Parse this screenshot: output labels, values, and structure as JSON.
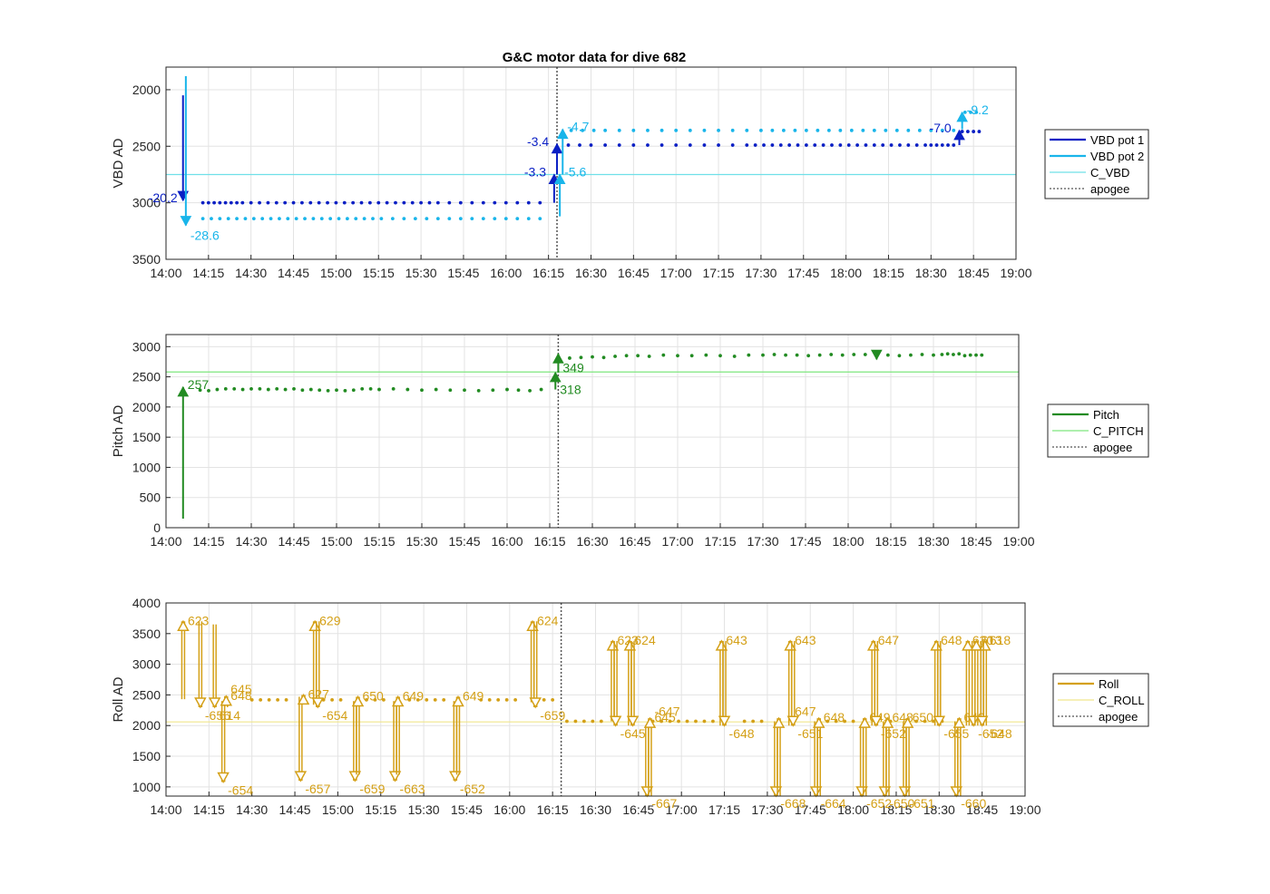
{
  "title": "G&C motor data for dive 682",
  "time_axis": {
    "start": "14:00",
    "end": "19:00",
    "ticks": [
      "14:00",
      "14:15",
      "14:30",
      "14:45",
      "15:00",
      "15:15",
      "15:30",
      "15:45",
      "16:00",
      "16:15",
      "16:30",
      "16:45",
      "17:00",
      "17:15",
      "17:30",
      "17:45",
      "18:00",
      "18:15",
      "18:30",
      "18:45",
      "19:00"
    ]
  },
  "colors": {
    "vbd1": "#0a1fc4",
    "vbd2": "#19b5ea",
    "c_vbd": "#6fe0e8",
    "pitch": "#228b22",
    "c_pitch": "#7ee67e",
    "roll": "#d4a017",
    "c_roll": "#f0e68c",
    "apogee": "#555555"
  },
  "chart_data": [
    {
      "type": "line",
      "ylabel": "VBD AD",
      "ylim": [
        3500,
        1800
      ],
      "yticks": [
        2000,
        2500,
        3000,
        3500
      ],
      "y_reversed": true,
      "grid": true,
      "legend_position": "right",
      "legend": [
        "VBD pot 1",
        "VBD pot 2",
        "C_VBD",
        "apogee"
      ],
      "apogee": "16:18",
      "reference": {
        "name": "C_VBD",
        "value": 2750
      },
      "series": [
        {
          "name": "VBD pot 1",
          "segments": [
            {
              "x": [
                "14:13",
                "14:15",
                "14:17",
                "14:19",
                "14:21",
                "14:23",
                "14:25",
                "14:27",
                "14:30",
                "14:33",
                "14:36",
                "14:39",
                "14:42",
                "14:45",
                "14:48",
                "14:51",
                "14:54",
                "14:57",
                "15:00",
                "15:03",
                "15:06",
                "15:09",
                "15:12",
                "15:15",
                "15:18",
                "15:21",
                "15:24",
                "15:27",
                "15:30",
                "15:33",
                "15:36",
                "15:40",
                "15:44",
                "15:48",
                "15:52",
                "15:56",
                "16:00",
                "16:04",
                "16:08",
                "16:12"
              ],
              "y": 3000
            },
            {
              "x": [
                "16:22",
                "16:26",
                "16:30",
                "16:35",
                "16:40",
                "16:45",
                "16:50",
                "16:55",
                "17:00",
                "17:05",
                "17:10",
                "17:15",
                "17:20",
                "17:25",
                "17:28",
                "17:31",
                "17:34",
                "17:37",
                "17:40",
                "17:43",
                "17:46",
                "17:49",
                "17:52",
                "17:55",
                "17:58",
                "18:01",
                "18:04",
                "18:07",
                "18:10",
                "18:13",
                "18:16",
                "18:19",
                "18:22",
                "18:25",
                "18:28",
                "18:30",
                "18:32",
                "18:34",
                "18:36",
                "18:38"
              ],
              "y": 2490
            },
            {
              "x": [
                "18:41",
                "18:43",
                "18:45",
                "18:47"
              ],
              "y": 2370
            }
          ]
        },
        {
          "name": "VBD pot 2",
          "segments": [
            {
              "x": [
                "14:13",
                "14:16",
                "14:19",
                "14:22",
                "14:25",
                "14:28",
                "14:31",
                "14:34",
                "14:37",
                "14:40",
                "14:43",
                "14:46",
                "14:49",
                "14:52",
                "14:55",
                "14:58",
                "15:01",
                "15:04",
                "15:07",
                "15:10",
                "15:13",
                "15:16",
                "15:20",
                "15:24",
                "15:28",
                "15:32",
                "15:36",
                "15:40",
                "15:44",
                "15:48",
                "15:52",
                "15:56",
                "16:00",
                "16:04",
                "16:08",
                "16:12"
              ],
              "y": 3140
            },
            {
              "x": [
                "16:23",
                "16:27",
                "16:31",
                "16:35",
                "16:40",
                "16:45",
                "16:50",
                "16:55",
                "17:00",
                "17:05",
                "17:10",
                "17:15",
                "17:20",
                "17:25",
                "17:30",
                "17:34",
                "17:38",
                "17:42",
                "17:46",
                "17:50",
                "17:54",
                "17:58",
                "18:02",
                "18:06",
                "18:10",
                "18:14",
                "18:18",
                "18:22",
                "18:26",
                "18:30",
                "18:34",
                "18:38"
              ],
              "y": 2360
            },
            {
              "x": [
                "18:42",
                "18:44",
                "18:46"
              ],
              "y": 2200
            }
          ]
        }
      ],
      "events": [
        {
          "series": "VBD pot 1",
          "time": "14:06",
          "from": 2050,
          "to": 2980,
          "label": "-20.2"
        },
        {
          "series": "VBD pot 2",
          "time": "14:07",
          "from": 1880,
          "to": 3200,
          "label": "-28.6"
        },
        {
          "series": "VBD pot 1",
          "time": "16:17",
          "from": 3000,
          "to": 2750,
          "label": "-3.3"
        },
        {
          "series": "VBD pot 1",
          "time": "16:18",
          "from": 2750,
          "to": 2480,
          "label": "-3.4"
        },
        {
          "series": "VBD pot 2",
          "time": "16:19",
          "from": 3120,
          "to": 2750,
          "label": "-5.6"
        },
        {
          "series": "VBD pot 2",
          "time": "16:20",
          "from": 2750,
          "to": 2350,
          "label": "-4.7"
        },
        {
          "series": "VBD pot 1",
          "time": "18:40",
          "from": 2490,
          "to": 2360,
          "label": "-7.0"
        },
        {
          "series": "VBD pot 2",
          "time": "18:41",
          "from": 2350,
          "to": 2200,
          "label": "-9.2"
        }
      ]
    },
    {
      "type": "line",
      "ylabel": "Pitch AD",
      "ylim": [
        0,
        3200
      ],
      "yticks": [
        0,
        500,
        1000,
        1500,
        2000,
        2500,
        3000
      ],
      "grid": true,
      "legend_position": "right",
      "legend": [
        "Pitch",
        "C_PITCH",
        "apogee"
      ],
      "apogee": "16:18",
      "reference": {
        "name": "C_PITCH",
        "value": 2580
      },
      "series": [
        {
          "name": "Pitch",
          "segments": [
            {
              "x": [
                "14:12",
                "14:15",
                "14:18",
                "14:21",
                "14:24",
                "14:27",
                "14:30",
                "14:33",
                "14:36",
                "14:39",
                "14:42",
                "14:45",
                "14:48",
                "14:51",
                "14:54",
                "14:57",
                "15:00",
                "15:03",
                "15:06",
                "15:09",
                "15:12",
                "15:15",
                "15:20",
                "15:25",
                "15:30",
                "15:35",
                "15:40",
                "15:45",
                "15:50",
                "15:55",
                "16:00",
                "16:04",
                "16:08",
                "16:12"
              ],
              "y": [
                2280,
                2270,
                2290,
                2300,
                2300,
                2290,
                2300,
                2300,
                2290,
                2300,
                2290,
                2300,
                2280,
                2290,
                2280,
                2270,
                2280,
                2270,
                2280,
                2300,
                2300,
                2290,
                2300,
                2290,
                2280,
                2290,
                2280,
                2280,
                2270,
                2280,
                2290,
                2280,
                2270,
                2290
              ]
            },
            {
              "x": [
                "16:22",
                "16:26",
                "16:30",
                "16:34",
                "16:38",
                "16:42",
                "16:46",
                "16:50",
                "16:55",
                "17:00",
                "17:05",
                "17:10",
                "17:15",
                "17:20",
                "17:25",
                "17:30",
                "17:34",
                "17:38",
                "17:42",
                "17:46",
                "17:50",
                "17:54",
                "17:58",
                "18:02",
                "18:06",
                "18:10",
                "18:14",
                "18:18",
                "18:22",
                "18:26",
                "18:30",
                "18:33",
                "18:35",
                "18:37",
                "18:39",
                "18:41",
                "18:43",
                "18:45",
                "18:47"
              ],
              "y": [
                2810,
                2820,
                2830,
                2820,
                2840,
                2850,
                2850,
                2840,
                2860,
                2850,
                2850,
                2860,
                2850,
                2840,
                2860,
                2860,
                2870,
                2860,
                2860,
                2850,
                2860,
                2870,
                2860,
                2870,
                2870,
                2860,
                2860,
                2850,
                2860,
                2870,
                2860,
                2870,
                2880,
                2870,
                2880,
                2850,
                2860,
                2860,
                2860
              ]
            }
          ]
        }
      ],
      "events": [
        {
          "series": "Pitch",
          "time": "14:06",
          "from": 150,
          "to": 2330,
          "label": "257"
        },
        {
          "series": "Pitch",
          "time": "16:17",
          "from": 2290,
          "to": 2570,
          "label": "318"
        },
        {
          "series": "Pitch",
          "time": "16:18",
          "from": 2570,
          "to": 2880,
          "label": "349"
        },
        {
          "series": "Pitch",
          "time": "18:10",
          "from": 2880,
          "to": 2790,
          "label": ""
        }
      ]
    },
    {
      "type": "line",
      "ylabel": "Roll AD",
      "ylim": [
        850,
        4000
      ],
      "yticks": [
        1000,
        1500,
        2000,
        2500,
        3000,
        3500,
        4000
      ],
      "grid": true,
      "legend_position": "right",
      "legend": [
        "Roll",
        "C_ROLL",
        "apogee"
      ],
      "apogee": "16:18",
      "reference": {
        "name": "C_ROLL",
        "value": 2060
      },
      "series": [
        {
          "name": "Roll",
          "segments": [
            {
              "x": [
                "14:30",
                "14:33",
                "14:36",
                "14:39",
                "14:42",
                "14:55",
                "14:58",
                "15:01",
                "15:10",
                "15:13",
                "15:16",
                "15:25",
                "15:28",
                "15:31",
                "15:34",
                "15:37",
                "15:50",
                "15:53",
                "15:56",
                "15:59",
                "16:02",
                "16:12",
                "16:15"
              ],
              "y": 2420
            },
            {
              "x": [
                "16:20",
                "16:23",
                "16:26",
                "16:29",
                "16:32",
                "16:50",
                "16:53",
                "16:56",
                "16:59",
                "17:02",
                "17:05",
                "17:08",
                "17:11",
                "17:22",
                "17:25",
                "17:28",
                "17:48",
                "17:51",
                "17:54",
                "17:57",
                "18:00",
                "18:13",
                "18:22",
                "18:25",
                "18:28",
                "18:31"
              ],
              "y": 2070
            }
          ]
        }
      ],
      "events": [
        {
          "time": "14:06",
          "from": 2430,
          "to": 3700,
          "label": "623"
        },
        {
          "time": "14:12",
          "from": 3700,
          "to": 2300,
          "label": "-656"
        },
        {
          "time": "14:17",
          "from": 3650,
          "to": 2300,
          "label": "614"
        },
        {
          "time": "14:20",
          "from": 2400,
          "to": 1080,
          "label": "-654"
        },
        {
          "time": "14:21",
          "from": 2300,
          "to": 2480,
          "label": "648"
        },
        {
          "time": "14:21",
          "from": 2430,
          "to": 2430,
          "label": "645"
        },
        {
          "time": "14:47",
          "from": 2470,
          "to": 1100,
          "label": "-657"
        },
        {
          "time": "14:48",
          "from": 2360,
          "to": 2500,
          "label": "627"
        },
        {
          "time": "14:52",
          "from": 2340,
          "to": 3700,
          "label": "629"
        },
        {
          "time": "14:53",
          "from": 3700,
          "to": 2300,
          "label": "-654"
        },
        {
          "time": "15:06",
          "from": 2400,
          "to": 1100,
          "label": "-659"
        },
        {
          "time": "15:07",
          "from": 1200,
          "to": 2470,
          "label": "650"
        },
        {
          "time": "15:20",
          "from": 2400,
          "to": 1100,
          "label": "-663"
        },
        {
          "time": "15:21",
          "from": 1200,
          "to": 2470,
          "label": "649"
        },
        {
          "time": "15:41",
          "from": 2400,
          "to": 1100,
          "label": "-652"
        },
        {
          "time": "15:42",
          "from": 1200,
          "to": 2470,
          "label": "649"
        },
        {
          "time": "16:08",
          "from": 2380,
          "to": 3700,
          "label": "624"
        },
        {
          "time": "16:09",
          "from": 3700,
          "to": 2300,
          "label": "-659"
        },
        {
          "time": "16:36",
          "from": 2070,
          "to": 3380,
          "label": "623"
        },
        {
          "time": "16:37",
          "from": 3380,
          "to": 2000,
          "label": "-645"
        },
        {
          "time": "16:42",
          "from": 2000,
          "to": 3380,
          "label": "624"
        },
        {
          "time": "16:43",
          "from": 3380,
          "to": 2000,
          "label": ""
        },
        {
          "time": "16:48",
          "from": 2000,
          "to": 850,
          "label": "-667"
        },
        {
          "time": "16:49",
          "from": 850,
          "to": 2120,
          "label": "645"
        },
        {
          "time": "16:49",
          "from": 2070,
          "to": 2070,
          "label": "-647"
        },
        {
          "time": "17:14",
          "from": 2000,
          "to": 3380,
          "label": "643"
        },
        {
          "time": "17:15",
          "from": 3380,
          "to": 2000,
          "label": "-648"
        },
        {
          "time": "17:33",
          "from": 2070,
          "to": 850,
          "label": "-668"
        },
        {
          "time": "17:34",
          "from": 850,
          "to": 2120,
          "label": ""
        },
        {
          "time": "17:38",
          "from": 2000,
          "to": 3380,
          "label": "643"
        },
        {
          "time": "17:39",
          "from": 3380,
          "to": 2000,
          "label": "-651"
        },
        {
          "time": "17:38",
          "from": 2070,
          "to": 2070,
          "label": "647"
        },
        {
          "time": "17:47",
          "from": 2070,
          "to": 850,
          "label": "-664"
        },
        {
          "time": "17:48",
          "from": 850,
          "to": 2120,
          "label": "648"
        },
        {
          "time": "18:03",
          "from": 2000,
          "to": 850,
          "label": "-652"
        },
        {
          "time": "18:04",
          "from": 850,
          "to": 2120,
          "label": "649"
        },
        {
          "time": "18:07",
          "from": 2000,
          "to": 3380,
          "label": "647"
        },
        {
          "time": "18:08",
          "from": 3380,
          "to": 2000,
          "label": "-652"
        },
        {
          "time": "18:11",
          "from": 2070,
          "to": 850,
          "label": "-650"
        },
        {
          "time": "18:12",
          "from": 850,
          "to": 2120,
          "label": "648"
        },
        {
          "time": "18:18",
          "from": 2070,
          "to": 850,
          "label": "-651"
        },
        {
          "time": "18:19",
          "from": 850,
          "to": 2120,
          "label": "650"
        },
        {
          "time": "18:29",
          "from": 2000,
          "to": 3380,
          "label": "648"
        },
        {
          "time": "18:30",
          "from": 3380,
          "to": 2000,
          "label": "-655"
        },
        {
          "time": "18:36",
          "from": 2070,
          "to": 850,
          "label": "-660"
        },
        {
          "time": "18:37",
          "from": 850,
          "to": 2120,
          "label": "649"
        },
        {
          "time": "18:40",
          "from": 2000,
          "to": 3380,
          "label": "630"
        },
        {
          "time": "18:42",
          "from": 3380,
          "to": 2000,
          "label": "-652"
        },
        {
          "time": "18:43",
          "from": 2000,
          "to": 3380,
          "label": "613"
        },
        {
          "time": "18:46",
          "from": 2000,
          "to": 3380,
          "label": "618"
        },
        {
          "time": "18:45",
          "from": 3380,
          "to": 2000,
          "label": "-648"
        }
      ]
    }
  ]
}
